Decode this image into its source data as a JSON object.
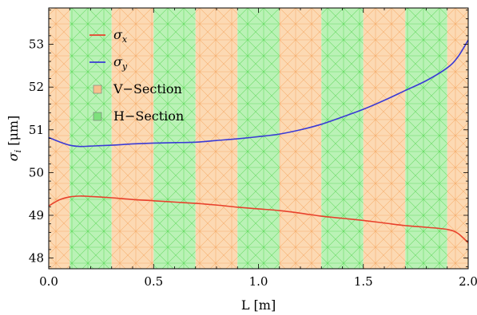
{
  "chart_data": {
    "type": "line",
    "xlabel": "L [m]",
    "ylabel": "σi [μm]",
    "ylabel_symbol": "σ",
    "ylabel_subscript": "i",
    "ylabel_unit": " [μm]",
    "xlim": [
      0.0,
      2.0
    ],
    "ylim": [
      47.75,
      53.85
    ],
    "x_ticks": [
      0.0,
      0.5,
      1.0,
      1.5,
      2.0
    ],
    "x_tick_labels": [
      "0.0",
      "0.5",
      "1.0",
      "1.5",
      "2.0"
    ],
    "y_ticks": [
      48,
      49,
      50,
      51,
      52,
      53
    ],
    "y_tick_labels": [
      "48",
      "49",
      "50",
      "51",
      "52",
      "53"
    ],
    "grid": false,
    "legend_position": "top-left",
    "sections": [
      {
        "name": "V-Section",
        "x0": 0.0,
        "x1": 0.1
      },
      {
        "name": "H-Section",
        "x0": 0.1,
        "x1": 0.3
      },
      {
        "name": "V-Section",
        "x0": 0.3,
        "x1": 0.5
      },
      {
        "name": "H-Section",
        "x0": 0.5,
        "x1": 0.7
      },
      {
        "name": "V-Section",
        "x0": 0.7,
        "x1": 0.9
      },
      {
        "name": "H-Section",
        "x0": 0.9,
        "x1": 1.1
      },
      {
        "name": "V-Section",
        "x0": 1.1,
        "x1": 1.3
      },
      {
        "name": "H-Section",
        "x0": 1.3,
        "x1": 1.5
      },
      {
        "name": "V-Section",
        "x0": 1.5,
        "x1": 1.7
      },
      {
        "name": "H-Section",
        "x0": 1.7,
        "x1": 1.9
      },
      {
        "name": "V-Section",
        "x0": 1.9,
        "x1": 2.0
      }
    ],
    "series": [
      {
        "name": "σx",
        "symbol": "σ",
        "subscript": "x",
        "color": "#e8412c",
        "x": [
          0.0,
          0.05,
          0.1,
          0.15,
          0.2,
          0.3,
          0.4,
          0.5,
          0.6,
          0.7,
          0.8,
          0.9,
          1.0,
          1.1,
          1.2,
          1.3,
          1.4,
          1.5,
          1.6,
          1.7,
          1.8,
          1.9,
          1.95,
          2.0
        ],
        "values": [
          49.22,
          49.36,
          49.43,
          49.45,
          49.44,
          49.41,
          49.37,
          49.34,
          49.31,
          49.28,
          49.24,
          49.19,
          49.15,
          49.11,
          49.05,
          48.98,
          48.93,
          48.88,
          48.82,
          48.76,
          48.72,
          48.67,
          48.58,
          48.36
        ]
      },
      {
        "name": "σy",
        "symbol": "σ",
        "subscript": "y",
        "color": "#3a3ad6",
        "x": [
          0.0,
          0.05,
          0.1,
          0.15,
          0.2,
          0.3,
          0.4,
          0.5,
          0.6,
          0.7,
          0.8,
          0.9,
          1.0,
          1.1,
          1.2,
          1.3,
          1.4,
          1.5,
          1.6,
          1.7,
          1.8,
          1.9,
          1.95,
          2.0
        ],
        "values": [
          50.82,
          50.72,
          50.64,
          50.61,
          50.62,
          50.64,
          50.67,
          50.69,
          50.7,
          50.71,
          50.75,
          50.79,
          50.84,
          50.9,
          51.0,
          51.13,
          51.3,
          51.48,
          51.69,
          51.92,
          52.15,
          52.45,
          52.7,
          53.1
        ]
      }
    ],
    "legend": [
      {
        "label": "σx",
        "symbol": "σ",
        "subscript": "x",
        "kind": "line",
        "color": "#e8412c"
      },
      {
        "label": "σy",
        "symbol": "σ",
        "subscript": "y",
        "kind": "line",
        "color": "#3a3ad6"
      },
      {
        "label": "V−Section",
        "kind": "swatch",
        "color": "#f6c08e"
      },
      {
        "label": "H−Section",
        "kind": "swatch",
        "color": "#7ee07c"
      }
    ],
    "colors": {
      "v_fill": "#fcd9b3",
      "v_mesh": "#f3a25a",
      "h_fill": "#baf2b6",
      "h_mesh": "#4fd44c",
      "frame": "#000000"
    }
  }
}
